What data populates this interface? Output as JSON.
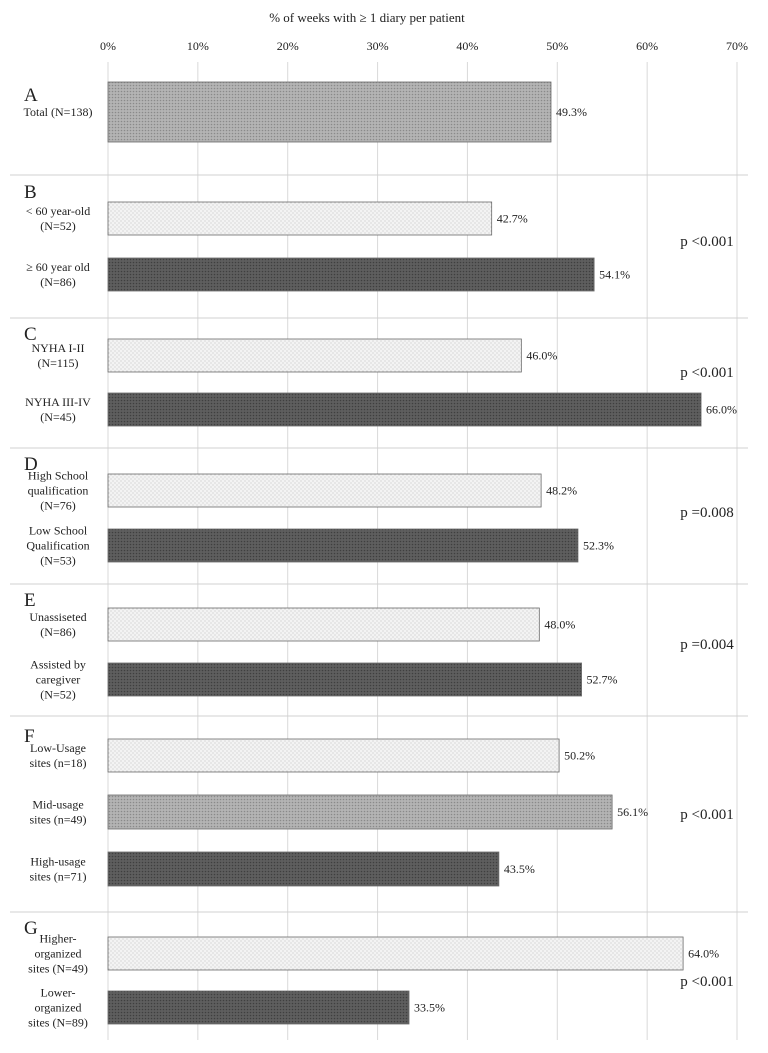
{
  "chart_data": {
    "type": "bar",
    "orientation": "horizontal",
    "title": "% of weeks with ≥ 1 diary per patient",
    "xlim": [
      0,
      70
    ],
    "x_ticks": [
      "0%",
      "10%",
      "20%",
      "30%",
      "40%",
      "50%",
      "60%",
      "70%"
    ],
    "grid": true,
    "panels": [
      {
        "letter": "A",
        "p_value": "",
        "bars": [
          {
            "label": [
              "Total (N=138)"
            ],
            "value": 49.3,
            "value_label": "49.3%",
            "fill": "medium"
          }
        ]
      },
      {
        "letter": "B",
        "p_value": "p <0.001",
        "bars": [
          {
            "label": [
              "< 60 year-old",
              "(N=52)"
            ],
            "value": 42.7,
            "value_label": "42.7%",
            "fill": "light"
          },
          {
            "label": [
              "≥ 60 year old",
              "(N=86)"
            ],
            "value": 54.1,
            "value_label": "54.1%",
            "fill": "dark"
          }
        ]
      },
      {
        "letter": "C",
        "p_value": "p <0.001",
        "bars": [
          {
            "label": [
              "NYHA I-II",
              "(N=115)"
            ],
            "value": 46.0,
            "value_label": "46.0%",
            "fill": "light"
          },
          {
            "label": [
              "NYHA III-IV",
              "(N=45)"
            ],
            "value": 66.0,
            "value_label": "66.0%",
            "fill": "dark"
          }
        ]
      },
      {
        "letter": "D",
        "p_value": "p =0.008",
        "bars": [
          {
            "label": [
              "High School",
              "qualification",
              "(N=76)"
            ],
            "value": 48.2,
            "value_label": "48.2%",
            "fill": "light"
          },
          {
            "label": [
              "Low School",
              "Qualification",
              "(N=53)"
            ],
            "value": 52.3,
            "value_label": "52.3%",
            "fill": "dark"
          }
        ]
      },
      {
        "letter": "E",
        "p_value": "p =0.004",
        "bars": [
          {
            "label": [
              "Unassiseted",
              "(N=86)"
            ],
            "value": 48.0,
            "value_label": "48.0%",
            "fill": "light"
          },
          {
            "label": [
              "Assisted by",
              "caregiver",
              "(N=52)"
            ],
            "value": 52.7,
            "value_label": "52.7%",
            "fill": "dark"
          }
        ]
      },
      {
        "letter": "F",
        "p_value": "p <0.001",
        "bars": [
          {
            "label": [
              "Low-Usage",
              "sites (n=18)"
            ],
            "value": 50.2,
            "value_label": "50.2%",
            "fill": "light"
          },
          {
            "label": [
              "Mid-usage",
              "sites (n=49)"
            ],
            "value": 56.1,
            "value_label": "56.1%",
            "fill": "medium"
          },
          {
            "label": [
              "High-usage",
              "sites (n=71)"
            ],
            "value": 43.5,
            "value_label": "43.5%",
            "fill": "dark"
          }
        ]
      },
      {
        "letter": "G",
        "p_value": "p <0.001",
        "bars": [
          {
            "label": [
              "Higher-",
              "organized",
              "sites (N=49)"
            ],
            "value": 64.0,
            "value_label": "64.0%",
            "fill": "light"
          },
          {
            "label": [
              "Lower-",
              "organized",
              "sites (N=89)"
            ],
            "value": 33.5,
            "value_label": "33.5%",
            "fill": "dark"
          }
        ]
      }
    ]
  },
  "colors": {
    "light_fill": "#f1f1f1",
    "medium_fill": "#a8a8a8",
    "dark_fill": "#595959",
    "grid": "#d9d9d9",
    "separator": "#d0d0d0",
    "text": "#222222"
  }
}
